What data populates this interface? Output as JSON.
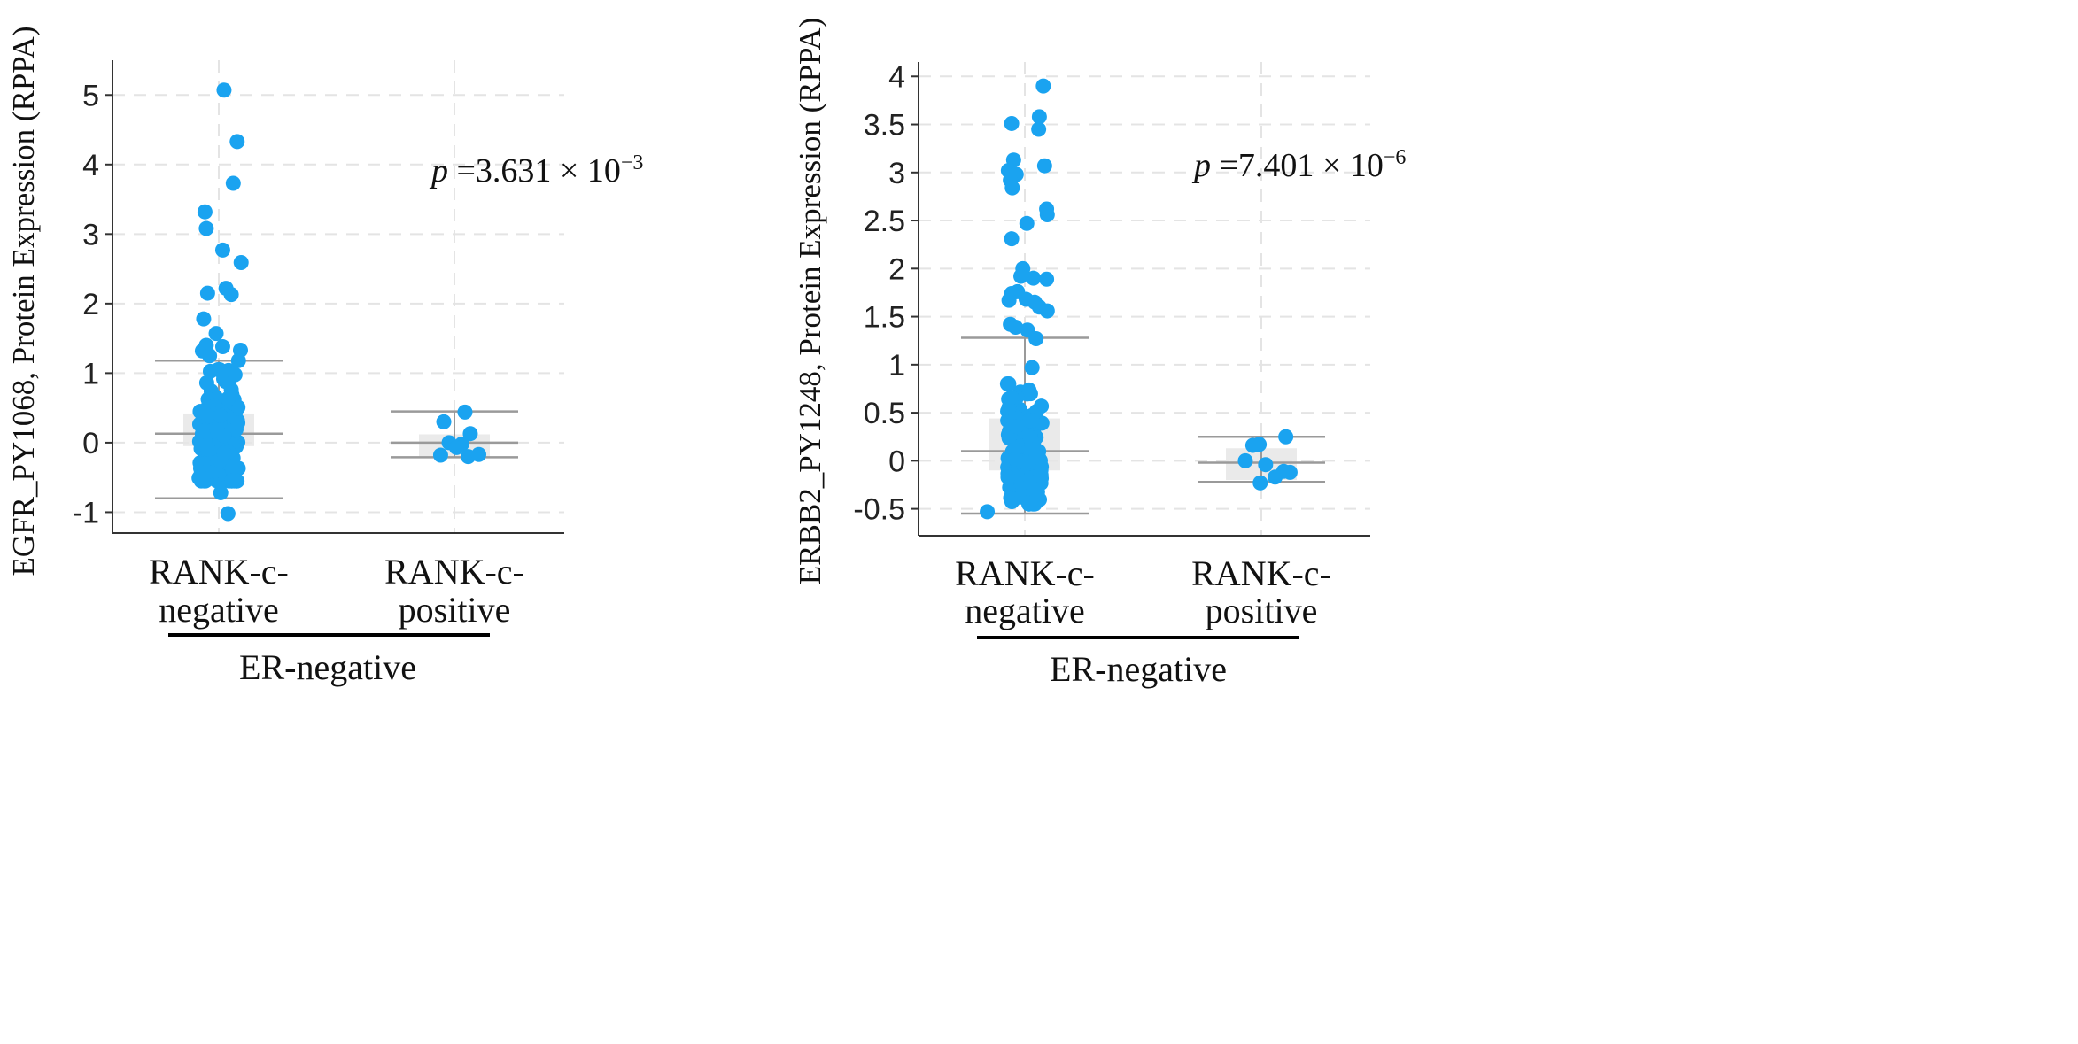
{
  "page": {
    "bg_color": "#ffffff",
    "point_color": "#1aa3f0",
    "box_fill": "#e6e6e6",
    "whisker_color": "#9a9a9a",
    "grid_color": "#e4e4e4"
  },
  "chart_data": [
    {
      "type": "box-strip",
      "ylabel": "EGFR_PY1068, Protein Expression (RPPA)",
      "ylim": [
        -1.3,
        5.5
      ],
      "yticks": [
        5,
        4,
        3,
        2,
        1,
        0,
        -1
      ],
      "ytick_labels": [
        "5",
        "4",
        "3",
        "2",
        "1",
        "0",
        "-1"
      ],
      "categories": [
        {
          "line1": "RANK-c-",
          "line2": "negative"
        },
        {
          "line1": "RANK-c-",
          "line2": "positive"
        }
      ],
      "group_label": "ER-negative",
      "annotation": {
        "p": "p",
        "mid": " =3.631 × 10",
        "exp": "−3"
      },
      "boxes": [
        {
          "whisker_low": -0.8,
          "q1": -0.05,
          "median": 0.13,
          "q3": 0.42,
          "whisker_high": 1.18
        },
        {
          "whisker_low": -0.21,
          "q1": -0.2,
          "median": 0.0,
          "q3": 0.12,
          "whisker_high": 0.45
        }
      ],
      "outliers": [
        {
          "c": 0,
          "dx": 0.08,
          "y": 5.07
        },
        {
          "c": 0,
          "dx": 0.28,
          "y": 4.33
        },
        {
          "c": 0,
          "dx": 0.22,
          "y": 3.73
        },
        {
          "c": 0,
          "dx": -0.21,
          "y": 3.32
        },
        {
          "c": 0,
          "dx": -0.19,
          "y": 3.08
        },
        {
          "c": 0,
          "dx": 0.06,
          "y": 2.77
        },
        {
          "c": 0,
          "dx": 0.34,
          "y": 2.59
        },
        {
          "c": 0,
          "dx": 0.11,
          "y": 2.22
        },
        {
          "c": 0,
          "dx": 0.19,
          "y": 2.13
        },
        {
          "c": 0,
          "dx": -0.17,
          "y": 2.15
        },
        {
          "c": 0,
          "dx": -0.23,
          "y": 1.78
        },
        {
          "c": 0,
          "dx": -0.04,
          "y": 1.57
        },
        {
          "c": 0,
          "dx": 0.06,
          "y": 1.38
        },
        {
          "c": 0,
          "dx": -0.25,
          "y": 1.32
        },
        {
          "c": 0,
          "dx": -0.19,
          "y": 1.4
        },
        {
          "c": 0,
          "dx": 0.33,
          "y": 1.33
        },
        {
          "c": 0,
          "dx": 0.3,
          "y": 1.18
        },
        {
          "c": 0,
          "dx": -0.14,
          "y": 1.25
        },
        {
          "c": 0,
          "dx": 0.03,
          "y": -0.72
        },
        {
          "c": 0,
          "dx": 0.14,
          "y": -1.02
        }
      ],
      "jitter": [
        {
          "c": 0,
          "n": 150,
          "min": -0.55,
          "max": 1.05,
          "center": 0.12,
          "spread": 0.34,
          "seed": 7
        },
        {
          "c": 1,
          "pts": [
            [
              -0.1,
              0.3
            ],
            [
              0.1,
              0.44
            ],
            [
              0.15,
              0.13
            ],
            [
              -0.05,
              0.0
            ],
            [
              0.07,
              -0.02
            ],
            [
              0.02,
              -0.07
            ],
            [
              -0.13,
              -0.18
            ],
            [
              0.13,
              -0.2
            ],
            [
              0.23,
              -0.17
            ]
          ]
        }
      ]
    },
    {
      "type": "box-strip",
      "ylabel": "ERBB2_PY1248, Protein Expression (RPPA)",
      "ylim": [
        -0.78,
        4.15
      ],
      "yticks": [
        4,
        3.5,
        3,
        2.5,
        2,
        1.5,
        1,
        0.5,
        0,
        -0.5
      ],
      "ytick_labels": [
        "4",
        "3.5",
        "3",
        "2.5",
        "2",
        "1.5",
        "1",
        "0.5",
        "0",
        "-0.5"
      ],
      "categories": [
        {
          "line1": "RANK-c-",
          "line2": "negative"
        },
        {
          "line1": "RANK-c-",
          "line2": "positive"
        }
      ],
      "group_label": "ER-negative",
      "annotation": {
        "p": "p",
        "mid": " =7.401 × 10",
        "exp": "−6"
      },
      "boxes": [
        {
          "whisker_low": -0.55,
          "q1": -0.1,
          "median": 0.1,
          "q3": 0.44,
          "whisker_high": 1.28
        },
        {
          "whisker_low": -0.22,
          "q1": -0.2,
          "median": -0.02,
          "q3": 0.13,
          "whisker_high": 0.25
        }
      ],
      "outliers": [
        {
          "c": 0,
          "dx": 0.28,
          "y": 3.9
        },
        {
          "c": 0,
          "dx": 0.22,
          "y": 3.58
        },
        {
          "c": 0,
          "dx": -0.2,
          "y": 3.51
        },
        {
          "c": 0,
          "dx": 0.21,
          "y": 3.45
        },
        {
          "c": 0,
          "dx": -0.17,
          "y": 3.13
        },
        {
          "c": 0,
          "dx": 0.3,
          "y": 3.07
        },
        {
          "c": 0,
          "dx": -0.25,
          "y": 3.02
        },
        {
          "c": 0,
          "dx": -0.13,
          "y": 2.98
        },
        {
          "c": 0,
          "dx": -0.22,
          "y": 2.92
        },
        {
          "c": 0,
          "dx": -0.19,
          "y": 2.84
        },
        {
          "c": 0,
          "dx": 0.33,
          "y": 2.62
        },
        {
          "c": 0,
          "dx": 0.34,
          "y": 2.56
        },
        {
          "c": 0,
          "dx": 0.03,
          "y": 2.47
        },
        {
          "c": 0,
          "dx": -0.2,
          "y": 2.31
        },
        {
          "c": 0,
          "dx": -0.03,
          "y": 2.0
        },
        {
          "c": 0,
          "dx": -0.06,
          "y": 1.92
        },
        {
          "c": 0,
          "dx": 0.13,
          "y": 1.9
        },
        {
          "c": 0,
          "dx": 0.33,
          "y": 1.89
        },
        {
          "c": 0,
          "dx": -0.2,
          "y": 1.74
        },
        {
          "c": 0,
          "dx": -0.11,
          "y": 1.76
        },
        {
          "c": 0,
          "dx": -0.24,
          "y": 1.67
        },
        {
          "c": 0,
          "dx": 0.02,
          "y": 1.68
        },
        {
          "c": 0,
          "dx": 0.15,
          "y": 1.65
        },
        {
          "c": 0,
          "dx": 0.22,
          "y": 1.6
        },
        {
          "c": 0,
          "dx": 0.34,
          "y": 1.56
        },
        {
          "c": 0,
          "dx": -0.22,
          "y": 1.42
        },
        {
          "c": 0,
          "dx": -0.14,
          "y": 1.39
        },
        {
          "c": 0,
          "dx": 0.04,
          "y": 1.36
        },
        {
          "c": 0,
          "dx": 0.17,
          "y": 1.27
        },
        {
          "c": 0,
          "dx": 0.11,
          "y": 0.97
        },
        {
          "c": 0,
          "dx": -0.57,
          "y": -0.53
        }
      ],
      "jitter": [
        {
          "c": 0,
          "n": 150,
          "min": -0.45,
          "max": 0.8,
          "center": 0.08,
          "spread": 0.3,
          "seed": 19
        },
        {
          "c": 1,
          "pts": [
            [
              -0.08,
              0.16
            ],
            [
              -0.02,
              0.17
            ],
            [
              0.23,
              0.25
            ],
            [
              -0.15,
              0.0
            ],
            [
              0.04,
              -0.04
            ],
            [
              0.21,
              -0.11
            ],
            [
              0.27,
              -0.12
            ],
            [
              0.13,
              -0.17
            ],
            [
              -0.01,
              -0.23
            ]
          ]
        }
      ]
    }
  ]
}
